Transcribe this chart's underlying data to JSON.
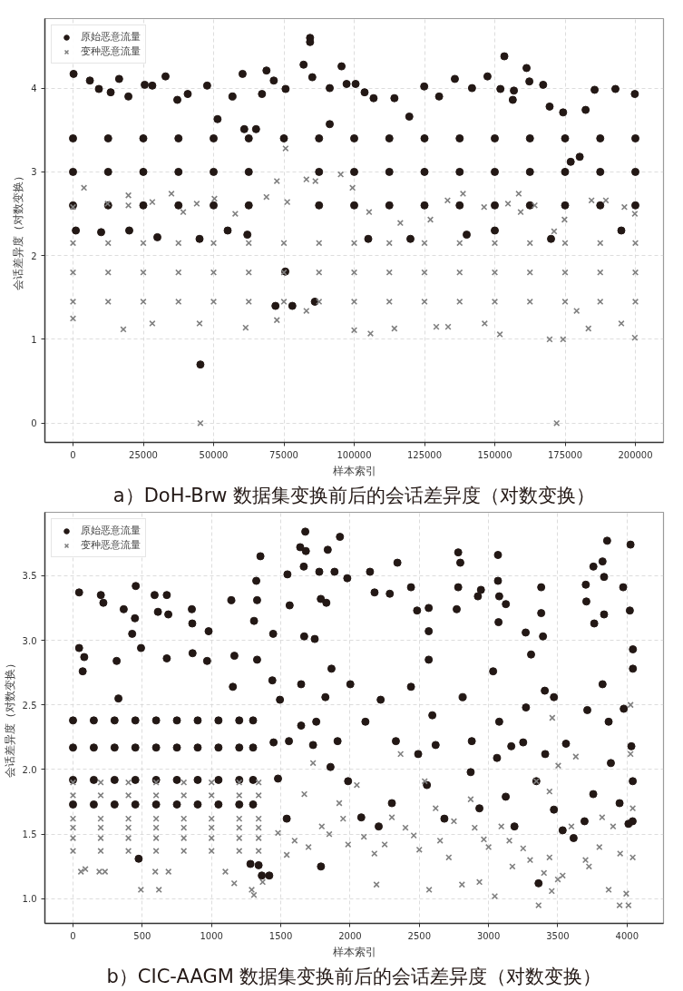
{
  "chart_data": [
    {
      "type": "scatter",
      "xlabel": "样本索引",
      "ylabel": "会话差异度（对数变换）",
      "annotations": [
        "a）DoH-Brw 数据集变换前后的会话差异度（对数变换）"
      ],
      "xlim": [
        -10000,
        210000
      ],
      "ylim": [
        -0.23,
        4.83
      ],
      "xticks": [
        0,
        25000,
        50000,
        75000,
        100000,
        125000,
        150000,
        175000,
        200000
      ],
      "yticks": [
        0,
        1,
        2,
        3,
        4
      ],
      "grid": true,
      "legend": "top left",
      "series": [
        {
          "name": "原始恶意流量",
          "color": "#231815",
          "marker": "circle",
          "x": [
            200,
            6000,
            9200,
            13400,
            16400,
            19700,
            25500,
            28200,
            32900,
            37100,
            40800,
            47700,
            51400,
            56700,
            60300,
            60900,
            65100,
            67200,
            68800,
            71400,
            75600,
            82000,
            84300,
            84300,
            85100,
            91300,
            91300,
            95500,
            97300,
            100500,
            103700,
            106900,
            114300,
            119600,
            124900,
            130200,
            135800,
            141900,
            147400,
            152000,
            153400,
            156400,
            156800,
            161300,
            162300,
            167200,
            169500,
            174300,
            177000,
            180200,
            182300,
            185500,
            192900,
            199800,
            45300,
            1000,
            10000,
            20000,
            30000,
            45000,
            55000,
            62000,
            72000,
            78000,
            75500,
            86000,
            105000,
            120000,
            140000,
            150000,
            170000,
            195000,
            0,
            0,
            0,
            12500,
            12500,
            12500,
            25000,
            25000,
            25000,
            37500,
            37500,
            37500,
            50000,
            50000,
            50000,
            62500,
            62500,
            62500,
            75000,
            87500,
            87500,
            87500,
            100000,
            100000,
            100000,
            112500,
            112500,
            112500,
            125000,
            125000,
            125000,
            137500,
            137500,
            137500,
            150000,
            150000,
            150000,
            162500,
            162500,
            162500,
            175000,
            175000,
            175000,
            187500,
            187500,
            187500,
            200000,
            200000,
            200000
          ],
          "values": [
            4.17,
            4.09,
            3.99,
            3.95,
            4.11,
            3.9,
            4.04,
            4.03,
            4.14,
            3.86,
            3.93,
            4.03,
            3.63,
            3.9,
            4.17,
            3.51,
            3.51,
            3.93,
            4.21,
            4.09,
            3.99,
            4.28,
            4.6,
            4.55,
            4.13,
            4.0,
            3.57,
            4.26,
            4.05,
            4.05,
            3.95,
            3.88,
            3.88,
            3.66,
            4.02,
            3.9,
            4.11,
            4.0,
            4.14,
            3.99,
            4.38,
            3.86,
            3.97,
            4.24,
            4.08,
            4.04,
            3.78,
            3.71,
            3.12,
            3.18,
            3.74,
            3.98,
            3.99,
            3.93,
            0.7,
            2.3,
            2.28,
            2.3,
            2.22,
            2.2,
            2.3,
            2.25,
            1.4,
            1.4,
            1.81,
            1.45,
            2.2,
            2.2,
            2.25,
            2.3,
            2.2,
            2.3,
            2.6,
            3.0,
            3.4,
            2.6,
            3.0,
            3.4,
            2.6,
            3.0,
            3.4,
            2.6,
            3.0,
            3.4,
            2.6,
            3.0,
            3.4,
            2.6,
            3.0,
            3.4,
            3.4,
            2.6,
            3.0,
            3.4,
            2.6,
            3.0,
            3.4,
            2.6,
            3.0,
            3.4,
            2.6,
            3.0,
            3.4,
            2.6,
            3.0,
            3.4,
            2.6,
            3.0,
            3.4,
            2.6,
            3.0,
            3.4,
            2.6,
            3.0,
            3.4,
            2.6,
            3.0,
            3.4,
            2.6,
            3.0,
            3.4
          ]
        },
        {
          "name": "变种恶意流量",
          "color": "#808080",
          "marker": "cross",
          "x": [
            0,
            3900,
            12300,
            19700,
            19700,
            28200,
            35000,
            39200,
            44000,
            50300,
            57700,
            68800,
            72500,
            75600,
            76200,
            83000,
            86200,
            95200,
            99400,
            105300,
            116400,
            127100,
            133200,
            138700,
            146200,
            154700,
            158500,
            159200,
            164200,
            171100,
            174800,
            184400,
            189500,
            196100,
            199800,
            0,
            17900,
            28200,
            45000,
            45300,
            61400,
            72500,
            83000,
            100000,
            105800,
            114300,
            129200,
            133400,
            146400,
            151800,
            169500,
            174300,
            172000,
            179100,
            183300,
            195000,
            199800,
            0,
            0,
            0,
            12500,
            12500,
            12500,
            25000,
            25000,
            25000,
            37500,
            37500,
            37500,
            50000,
            50000,
            50000,
            62500,
            62500,
            62500,
            75000,
            75000,
            75000,
            87500,
            87500,
            87500,
            100000,
            100000,
            100000,
            112500,
            112500,
            112500,
            125000,
            125000,
            125000,
            137500,
            137500,
            137500,
            150000,
            150000,
            150000,
            162500,
            162500,
            162500,
            175000,
            175000,
            175000,
            187500,
            187500,
            187500,
            200000,
            200000,
            200000
          ],
          "values": [
            2.58,
            2.81,
            2.62,
            2.72,
            2.6,
            2.64,
            2.74,
            2.52,
            2.62,
            2.68,
            2.5,
            2.7,
            2.89,
            3.28,
            2.64,
            2.91,
            2.89,
            2.97,
            2.81,
            2.52,
            2.39,
            2.43,
            2.66,
            2.74,
            2.58,
            2.62,
            2.74,
            2.52,
            2.6,
            2.29,
            2.43,
            2.66,
            2.66,
            2.58,
            2.5,
            1.25,
            1.12,
            1.19,
            1.19,
            0.0,
            1.14,
            1.23,
            1.34,
            1.11,
            1.07,
            1.13,
            1.15,
            1.15,
            1.19,
            1.06,
            1.0,
            1.0,
            0.0,
            1.34,
            1.13,
            1.19,
            1.02,
            1.45,
            1.8,
            2.15,
            1.45,
            1.8,
            2.15,
            1.45,
            1.8,
            2.15,
            1.45,
            1.8,
            2.15,
            1.45,
            1.8,
            2.15,
            1.45,
            1.8,
            2.15,
            1.45,
            1.8,
            2.15,
            1.45,
            1.8,
            2.15,
            1.45,
            1.8,
            2.15,
            1.45,
            1.8,
            2.15,
            1.45,
            1.8,
            2.15,
            1.45,
            1.8,
            2.15,
            1.45,
            1.8,
            2.15,
            1.45,
            1.8,
            2.15,
            1.45,
            1.8,
            2.15,
            1.45,
            1.8,
            2.15,
            1.45,
            1.8,
            2.15
          ]
        }
      ]
    },
    {
      "type": "scatter",
      "xlabel": "样本索引",
      "ylabel": "会话差异度（对数变换）",
      "annotations": [
        "b）CIC-AAGM 数据集变换前后的会话差异度（对数变换）"
      ],
      "xlim": [
        -203,
        4263
      ],
      "ylim": [
        0.81,
        3.99
      ],
      "xticks": [
        0,
        500,
        1000,
        1500,
        2000,
        2500,
        3000,
        3500,
        4000
      ],
      "yticks": [
        {
          "value": 1,
          "label": "1.0"
        },
        1.5,
        {
          "value": 2,
          "label": "2.0"
        },
        2.5,
        {
          "value": 3,
          "label": "3.0"
        },
        3.5
      ],
      "grid": true,
      "legend": "top left",
      "series": [
        {
          "name": "原始恶意流量",
          "color": "#231815",
          "marker": "circle",
          "x": [
            44,
            44,
            81,
            70,
            201,
            219,
            366,
            315,
            328,
            453,
            447,
            427,
            491,
            589,
            613,
            677,
            688,
            677,
            858,
            861,
            863,
            968,
            979,
            1143,
            1165,
            1154,
            1307,
            1323,
            1353,
            1329,
            1329,
            1445,
            1439,
            1548,
            1564,
            1640,
            1677,
            1681,
            1666,
            1778,
            1839,
            1888,
            1927,
            1669,
            1789,
            1829,
            1745,
            1980,
            2144,
            2177,
            2287,
            2342,
            2440,
            2484,
            2568,
            2568,
            2568,
            2781,
            2796,
            2781,
            2770,
            2945,
            2923,
            3068,
            3068,
            3077,
            3072,
            3125,
            3268,
            3380,
            3380,
            3393,
            3307,
            3706,
            3702,
            3757,
            3763,
            3823,
            3856,
            3834,
            3834,
            4025,
            3972,
            4020,
            4042,
            4042,
            3713,
            3270,
            0,
            0,
            0,
            0,
            150,
            150,
            150,
            150,
            300,
            300,
            300,
            300,
            450,
            450,
            450,
            450,
            600,
            600,
            600,
            600,
            750,
            750,
            750,
            750,
            900,
            900,
            900,
            900,
            1050,
            1050,
            1050,
            1050,
            1200,
            1200,
            1200,
            1200,
            1300,
            1300,
            1300,
            1300,
            1281,
            1340,
            1363,
            1417,
            474,
            1790,
            3361,
            3614,
            4040,
            1448,
            1480,
            1543,
            1733,
            1859,
            1986,
            2081,
            2207,
            2302,
            2492,
            2555,
            2618,
            2681,
            2871,
            2934,
            3061,
            3124,
            3187,
            3250,
            3345,
            3409,
            3472,
            3535,
            3693,
            3756,
            3883,
            3946,
            4041,
            4010,
            1494,
            1559,
            1647,
            1756,
            1822,
            1910,
            1866,
            1647,
            2002,
            2111,
            2221,
            2331,
            2440,
            2594,
            2813,
            2879,
            3033,
            3077,
            3164,
            3406,
            3472,
            3559,
            3823,
            3867,
            3976,
            4031
          ],
          "values": [
            3.37,
            2.94,
            2.87,
            2.76,
            3.35,
            3.29,
            3.24,
            2.84,
            2.55,
            3.42,
            3.17,
            3.05,
            2.94,
            3.35,
            3.22,
            3.35,
            3.2,
            2.86,
            3.24,
            3.13,
            2.9,
            2.84,
            3.07,
            3.31,
            2.88,
            2.64,
            3.15,
            3.46,
            3.65,
            3.31,
            2.85,
            3.05,
            2.69,
            3.51,
            3.27,
            3.72,
            3.84,
            3.69,
            3.57,
            3.53,
            3.7,
            3.53,
            3.8,
            3.03,
            3.32,
            3.29,
            3.01,
            3.48,
            3.53,
            3.37,
            3.36,
            3.6,
            3.41,
            3.23,
            3.25,
            3.07,
            2.85,
            3.68,
            3.6,
            3.41,
            3.24,
            3.39,
            3.34,
            3.66,
            3.46,
            3.34,
            3.14,
            3.28,
            3.06,
            3.41,
            3.21,
            3.03,
            2.89,
            3.3,
            3.43,
            3.57,
            3.13,
            3.61,
            3.77,
            3.49,
            3.2,
            3.74,
            3.41,
            3.23,
            2.93,
            2.78,
            2.46,
            2.48,
            2.38,
            2.17,
            1.92,
            1.73,
            2.38,
            2.17,
            1.92,
            1.73,
            2.38,
            2.17,
            1.92,
            1.73,
            2.38,
            2.17,
            1.92,
            1.73,
            2.38,
            2.17,
            1.92,
            1.73,
            2.38,
            2.17,
            1.92,
            1.73,
            2.38,
            2.17,
            1.92,
            1.73,
            2.38,
            2.17,
            1.92,
            1.73,
            2.38,
            2.17,
            1.92,
            1.73,
            2.38,
            2.17,
            1.92,
            1.73,
            1.27,
            1.26,
            1.18,
            1.18,
            1.31,
            1.25,
            1.12,
            1.47,
            1.6,
            2.21,
            1.93,
            1.62,
            2.19,
            2.02,
            1.91,
            1.63,
            1.56,
            1.74,
            2.12,
            1.88,
            2.19,
            1.62,
            1.98,
            1.7,
            2.09,
            1.79,
            1.56,
            2.21,
            1.91,
            2.12,
            1.69,
            1.53,
            1.6,
            1.81,
            2.05,
            1.74,
            1.91,
            1.58,
            2.54,
            2.22,
            2.66,
            2.37,
            2.56,
            2.22,
            2.78,
            2.34,
            2.66,
            2.37,
            2.54,
            2.22,
            2.64,
            2.42,
            2.56,
            2.22,
            2.76,
            2.37,
            2.18,
            2.61,
            2.56,
            2.2,
            2.66,
            2.37,
            2.47,
            2.18
          ]
        },
        {
          "name": "变种恶意流量",
          "color": "#808080",
          "marker": "cross",
          "x": [
            0,
            0,
            0,
            0,
            0,
            0,
            200,
            200,
            200,
            200,
            200,
            200,
            400,
            400,
            400,
            400,
            400,
            400,
            600,
            600,
            600,
            600,
            600,
            600,
            800,
            800,
            800,
            800,
            800,
            800,
            1000,
            1000,
            1000,
            1000,
            1000,
            1000,
            1200,
            1200,
            1200,
            1200,
            1200,
            1200,
            1340,
            1340,
            1340,
            1340,
            1340,
            1340,
            57,
            89,
            190,
            231,
            490,
            594,
            620,
            689,
            1100,
            1164,
            1290,
            1306,
            1369,
            1480,
            1543,
            1670,
            1733,
            1796,
            1922,
            1986,
            2049,
            2176,
            2191,
            2302,
            2365,
            2460,
            2539,
            2571,
            2618,
            2713,
            2808,
            2871,
            2966,
            2934,
            3045,
            3092,
            3172,
            3250,
            3345,
            3361,
            3440,
            3456,
            3440,
            3535,
            3503,
            3598,
            3725,
            3820,
            3867,
            3899,
            3946,
            3994,
            4010,
            4041,
            4041,
            3630,
            4025,
            3460,
            4025,
            1600,
            1700,
            1850,
            1950,
            2100,
            2250,
            2400,
            2500,
            2650,
            2750,
            2900,
            3000,
            3150,
            3300,
            3400,
            3500,
            3700,
            3800,
            3950
          ],
          "values": [
            1.9,
            1.8,
            1.62,
            1.55,
            1.47,
            1.37,
            1.9,
            1.8,
            1.62,
            1.55,
            1.47,
            1.37,
            1.9,
            1.8,
            1.62,
            1.55,
            1.47,
            1.37,
            1.9,
            1.8,
            1.62,
            1.55,
            1.47,
            1.37,
            1.9,
            1.8,
            1.62,
            1.55,
            1.47,
            1.37,
            1.9,
            1.8,
            1.62,
            1.55,
            1.47,
            1.37,
            1.9,
            1.8,
            1.62,
            1.55,
            1.47,
            1.37,
            1.9,
            1.8,
            1.62,
            1.55,
            1.47,
            1.37,
            1.21,
            1.23,
            1.21,
            1.21,
            1.07,
            1.21,
            1.07,
            1.21,
            1.21,
            1.12,
            1.07,
            1.03,
            1.13,
            1.51,
            1.34,
            1.81,
            2.05,
            1.56,
            1.74,
            1.42,
            1.88,
            1.35,
            1.11,
            1.63,
            2.12,
            1.49,
            1.91,
            1.07,
            1.7,
            1.32,
            1.11,
            1.77,
            1.46,
            1.13,
            1.02,
            1.56,
            1.25,
            1.39,
            1.91,
            0.95,
            1.32,
            1.06,
            1.83,
            1.18,
            2.03,
            1.56,
            1.25,
            1.63,
            1.07,
            1.56,
            0.95,
            1.04,
            0.95,
            1.7,
            1.32,
            2.1,
            2.12,
            2.4,
            2.5,
            1.45,
            1.4,
            1.5,
            1.62,
            1.48,
            1.42,
            1.55,
            1.38,
            1.45,
            1.6,
            1.55,
            1.4,
            1.45,
            1.3,
            1.2,
            1.15,
            1.3,
            1.4,
            1.35
          ]
        }
      ]
    }
  ]
}
